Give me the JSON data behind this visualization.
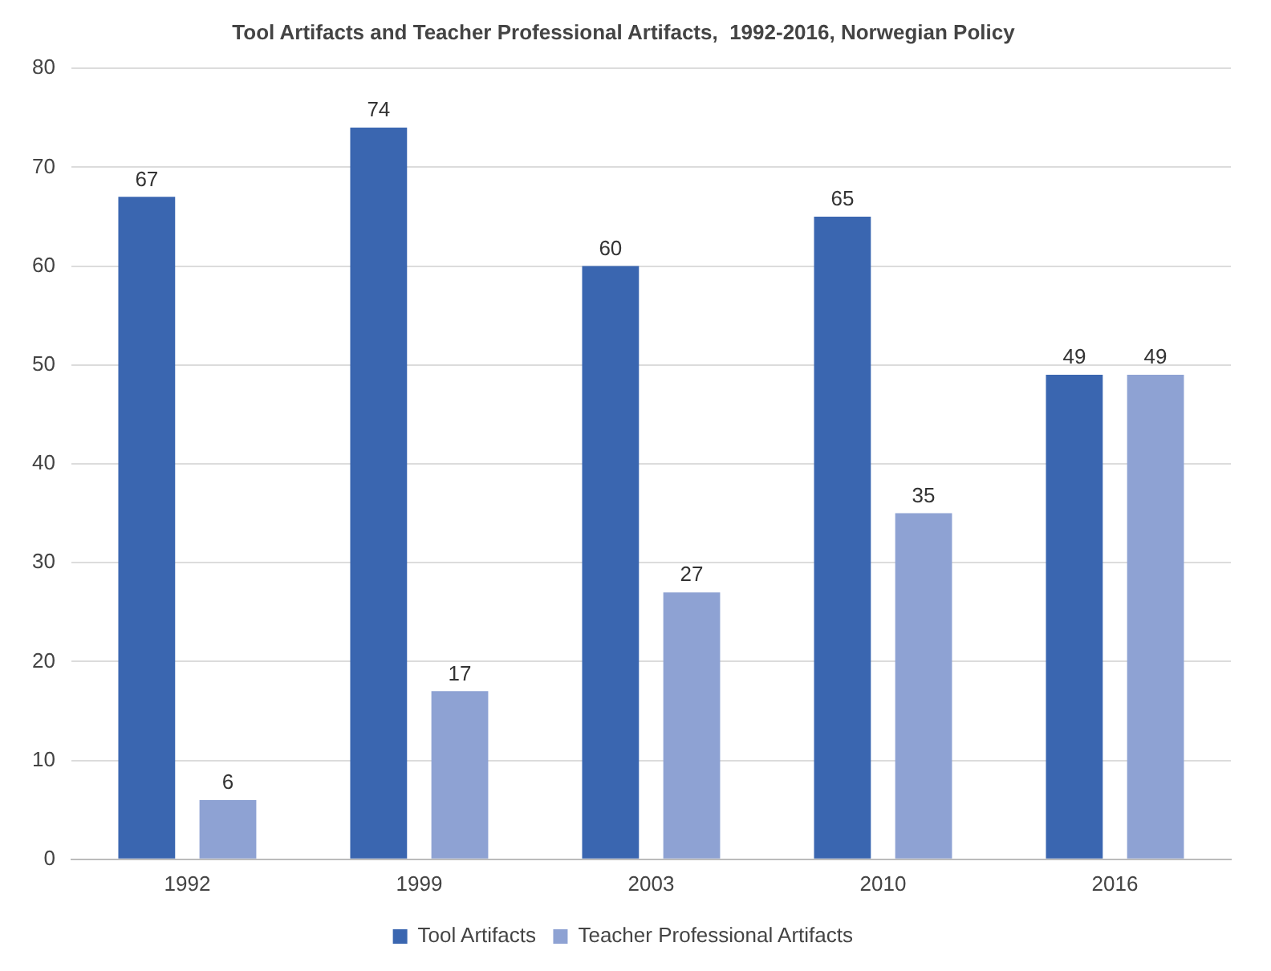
{
  "chart_data": {
    "type": "bar",
    "title": "Tool Artifacts and Teacher Professional Artifacts,  1992-2016, Norwegian Policy",
    "categories": [
      "1992",
      "1999",
      "2003",
      "2010",
      "2016"
    ],
    "series": [
      {
        "name": "Tool Artifacts",
        "color": "#3a66b0",
        "values": [
          67,
          74,
          60,
          65,
          49
        ]
      },
      {
        "name": "Teacher Professional Artifacts",
        "color": "#8ea2d3",
        "values": [
          6,
          17,
          27,
          35,
          49
        ]
      }
    ],
    "ylim": [
      0,
      80
    ],
    "yticks": [
      0,
      10,
      20,
      30,
      40,
      50,
      60,
      70,
      80
    ],
    "grid": "y",
    "legend": "bottom",
    "data_labels": true
  }
}
